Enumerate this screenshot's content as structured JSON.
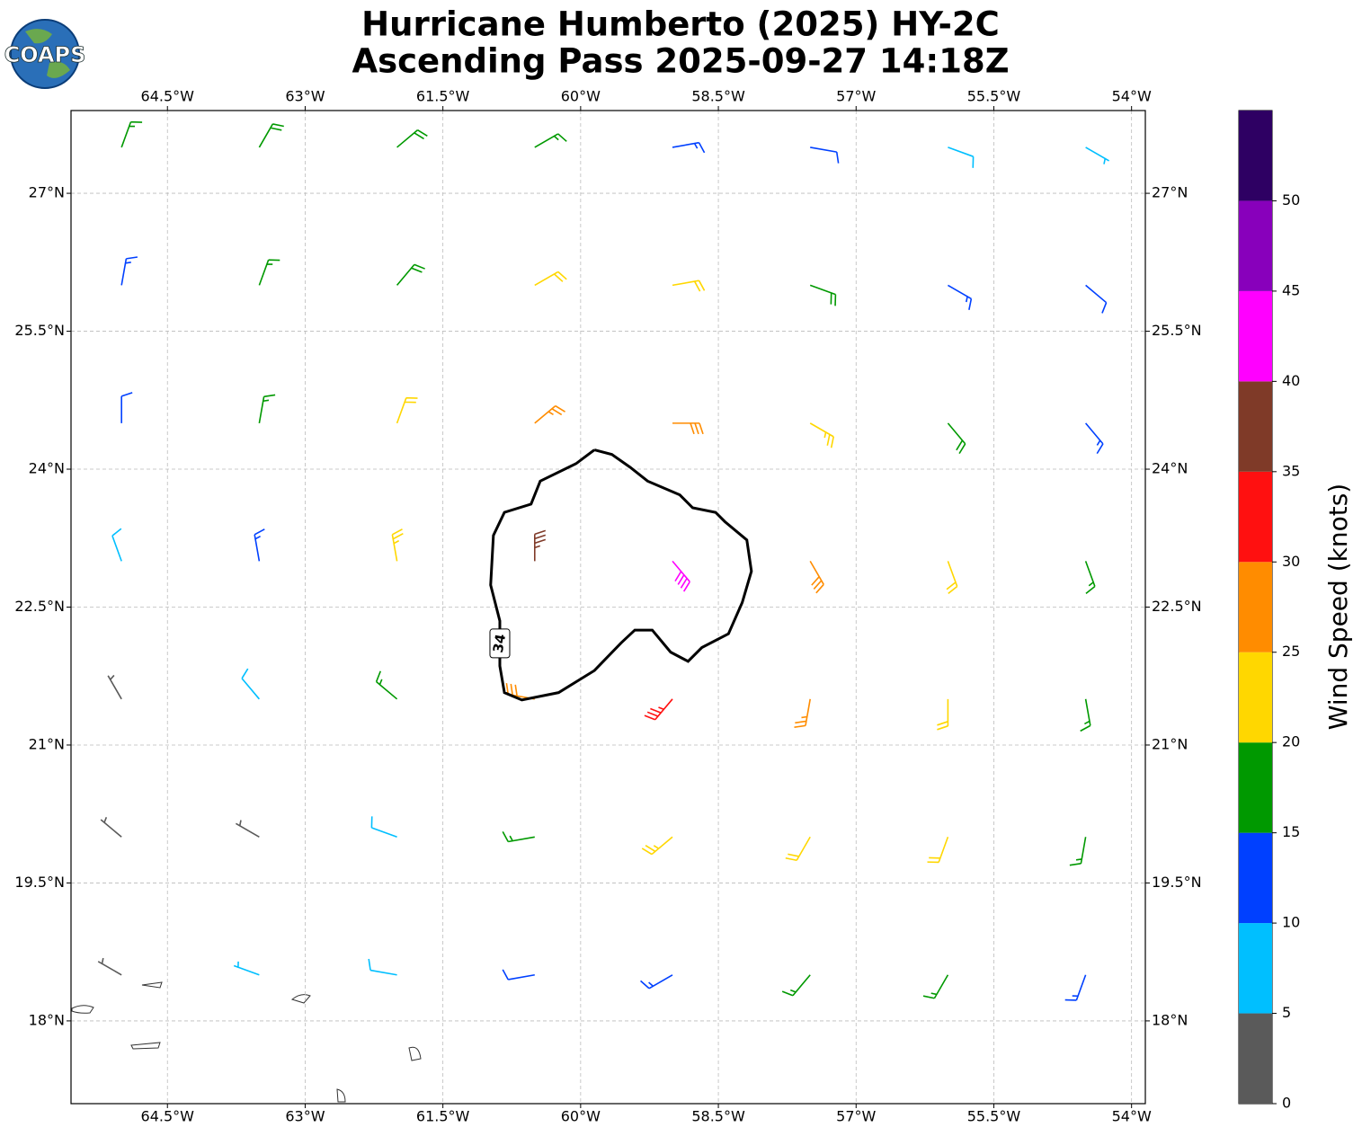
{
  "title": [
    "Hurricane Humberto (2025) HY-2C",
    "Ascending Pass 2025-09-27 14:18Z"
  ],
  "logo": "COAPS",
  "map": {
    "xlim": [
      -65.55,
      -53.85
    ],
    "ylim": [
      17.1,
      27.9
    ],
    "xticks": [
      {
        "value": -64.5,
        "label": "64.5°W"
      },
      {
        "value": -63,
        "label": "63°W"
      },
      {
        "value": -61.5,
        "label": "61.5°W"
      },
      {
        "value": -60,
        "label": "60°W"
      },
      {
        "value": -58.5,
        "label": "58.5°W"
      },
      {
        "value": -57,
        "label": "57°W"
      },
      {
        "value": -55.5,
        "label": "55.5°W"
      },
      {
        "value": -54,
        "label": "54°W"
      }
    ],
    "yticks": [
      {
        "value": 18,
        "label": "18°N"
      },
      {
        "value": 19.5,
        "label": "19.5°N"
      },
      {
        "value": 21,
        "label": "21°N"
      },
      {
        "value": 22.5,
        "label": "22.5°N"
      },
      {
        "value": 24,
        "label": "24°N"
      },
      {
        "value": 25.5,
        "label": "25.5°N"
      },
      {
        "value": 27,
        "label": "27°N"
      }
    ],
    "grid": true,
    "winds": {
      "lon": [
        -65,
        -63.5,
        -62,
        -60.5,
        -59,
        -57.5,
        -56,
        -54.5
      ],
      "lat": [
        27.5,
        26,
        24.5,
        23,
        21.5,
        20,
        18.5
      ],
      "speed": [
        [
          17,
          18,
          18,
          15,
          13,
          12,
          8,
          5
        ],
        [
          13,
          16,
          19,
          21,
          22,
          18,
          14,
          11
        ],
        [
          12,
          17,
          22,
          27,
          28,
          24,
          19,
          14
        ],
        [
          9,
          14,
          23,
          37,
          42,
          28,
          22,
          17
        ],
        [
          4,
          9,
          17,
          28,
          33,
          27,
          22,
          17
        ],
        [
          3,
          4,
          9,
          17,
          23,
          22,
          21,
          16
        ],
        [
          4,
          5,
          8,
          10,
          13,
          16,
          17,
          14
        ]
      ],
      "direction": [
        [
          20,
          30,
          50,
          60,
          80,
          100,
          110,
          120
        ],
        [
          10,
          20,
          40,
          60,
          80,
          110,
          120,
          130
        ],
        [
          0,
          10,
          20,
          50,
          90,
          120,
          140,
          140
        ],
        [
          340,
          350,
          350,
          0,
          140,
          150,
          160,
          160
        ],
        [
          330,
          320,
          310,
          280,
          220,
          190,
          180,
          170
        ],
        [
          310,
          300,
          290,
          260,
          230,
          210,
          200,
          190
        ],
        [
          300,
          290,
          280,
          260,
          240,
          220,
          210,
          200
        ]
      ]
    },
    "contour": {
      "level": 34,
      "lon": [
        -59.85,
        -60.05,
        -60.44,
        -60.54,
        -60.83,
        -60.95,
        -60.98,
        -60.88,
        -60.88,
        -60.83,
        -60.64,
        -60.24,
        -59.85,
        -59.56,
        -59.41,
        -59.22,
        -59.02,
        -58.83,
        -58.68,
        -58.39,
        -58.24,
        -58.14,
        -58.19,
        -58.43,
        -58.53,
        -58.78,
        -58.92,
        -59.27,
        -59.46,
        -59.66,
        -59.85
      ],
      "lat": [
        24.21,
        24.06,
        23.87,
        23.62,
        23.53,
        23.28,
        22.74,
        22.35,
        21.86,
        21.57,
        21.49,
        21.57,
        21.81,
        22.11,
        22.25,
        22.25,
        22.01,
        21.91,
        22.06,
        22.21,
        22.55,
        22.89,
        23.23,
        23.43,
        23.53,
        23.58,
        23.72,
        23.87,
        24.02,
        24.16,
        24.21
      ]
    }
  },
  "colorbar": {
    "label": "Wind Speed (knots)",
    "clim": [
      0,
      55
    ],
    "levels": [
      0,
      5,
      10,
      15,
      20,
      25,
      30,
      35,
      40,
      45,
      50,
      55
    ],
    "colors": [
      "#5a5a5a",
      "#00bfff",
      "#0040ff",
      "#009900",
      "#ffd700",
      "#ff8c00",
      "#ff1010",
      "#7f3a28",
      "#ff00ff",
      "#8800bb",
      "#2e0063"
    ],
    "ticks": [
      0,
      5,
      10,
      15,
      20,
      25,
      30,
      35,
      40,
      45,
      50
    ]
  }
}
